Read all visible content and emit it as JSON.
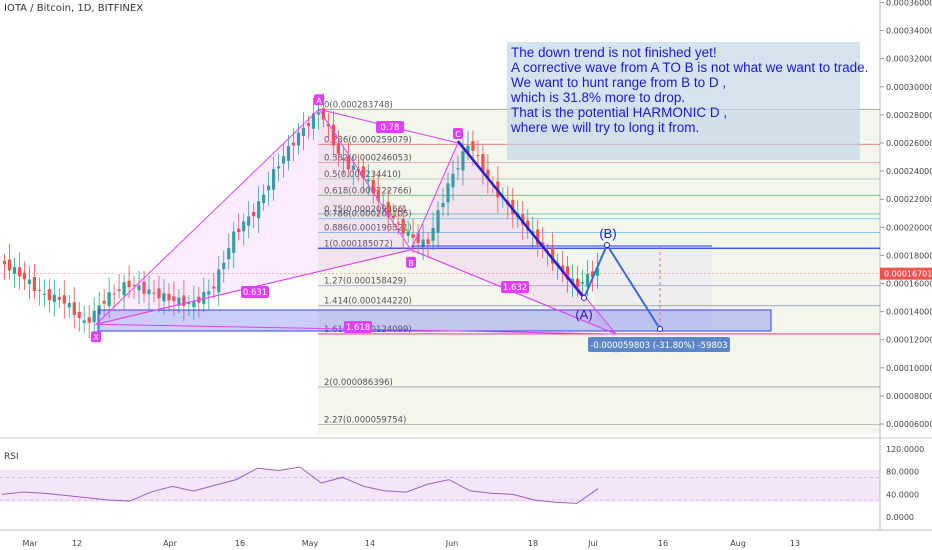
{
  "header": {
    "title": "IOTA / Bitcoin, 1D, BITFINEX"
  },
  "note": {
    "lines": [
      "The down trend is not finished yet!",
      "A corrective wave from A TO B is not what we want to trade.",
      "We want to hunt range from B to D ,",
      "which is 31.8% more to drop.",
      "That is the potential HARMONIC D ,",
      "where we will try to long it from."
    ]
  },
  "chart_data": [
    {
      "type": "line",
      "title": "IOTA / Bitcoin, 1D, BITFINEX",
      "y_axis": {
        "ticks": [
          "0.00006000",
          "0.00008000",
          "0.00010000",
          "0.00012000",
          "0.00014000",
          "0.00016000",
          "0.00018000",
          "0.00020000",
          "0.00022000",
          "0.00024000",
          "0.00026000",
          "0.00028000",
          "0.00030000",
          "0.00032000",
          "0.00034000",
          "0.00036000"
        ],
        "last_price": "0.00016701"
      },
      "x_axis": {
        "ticks": [
          "Mar",
          "12",
          "Apr",
          "16",
          "May",
          "14",
          "Jun",
          "18",
          "Jul",
          "16",
          "Aug",
          "13"
        ]
      },
      "price_path": [
        0.000176,
        0.000166,
        0.000152,
        0.000148,
        0.000131,
        0.00015,
        0.00016,
        0.000154,
        0.000149,
        0.000145,
        0.000157,
        0.000196,
        0.000212,
        0.000244,
        0.000266,
        0.000284,
        0.000247,
        0.000238,
        0.000213,
        0.000196,
        0.000187,
        0.00023,
        0.000261,
        0.00023,
        0.000212,
        0.000194,
        0.000175,
        0.000158,
        0.00017
      ],
      "fib_levels": [
        {
          "label": "0(0.000283748)",
          "value": 0.000283748
        },
        {
          "label": "0.236(0.000259079)",
          "value": 0.000259079
        },
        {
          "label": "0.382(0.000246053)",
          "value": 0.000246053
        },
        {
          "label": "0.5(0.000234410)",
          "value": 0.00023441
        },
        {
          "label": "0.618(0.000222766)",
          "value": 0.000222766
        },
        {
          "label": "0.75(0.000209466)",
          "value": 0.000209466
        },
        {
          "label": "0.786(0.000206105)",
          "value": 0.000206105
        },
        {
          "label": "0.886(0.000196321)",
          "value": 0.000196321
        },
        {
          "label": "1(0.000185072)",
          "value": 0.000185072
        },
        {
          "label": "1.27(0.000158429)",
          "value": 0.000158429
        },
        {
          "label": "1.414(0.000144220)",
          "value": 0.00014422
        },
        {
          "label": "1.618(0.000124099)",
          "value": 0.000124099
        },
        {
          "label": "2(0.000086396)",
          "value": 8.6396e-05
        },
        {
          "label": "2.27(0.000059754)",
          "value": 5.9754e-05
        }
      ],
      "pattern_points": [
        {
          "label": "X",
          "price": 0.000131
        },
        {
          "label": "A",
          "price": 0.000284
        },
        {
          "label": "B",
          "price": 0.000184
        },
        {
          "label": "C",
          "price": 0.00026
        },
        {
          "label": "D",
          "price": 0.000124
        }
      ],
      "ratios": [
        "0.78",
        "0.631",
        "1.632",
        "1.618"
      ],
      "wave_labels": [
        "(A)",
        "(B)"
      ],
      "measure_label": "-0.000059803 (-31.80%) -59803",
      "colors": {
        "up": "#26a69a",
        "down": "#ef5350",
        "pattern": "#e040fb",
        "wave": "#1a1acc",
        "zone": "#3040ee"
      }
    },
    {
      "type": "line",
      "title": "RSI",
      "y_axis": {
        "ticks": [
          "120.0000",
          "80.0000",
          "40.0000",
          "0.0000"
        ]
      },
      "values": [
        40,
        44,
        42,
        38,
        34,
        30,
        28,
        44,
        54,
        46,
        56,
        66,
        86,
        82,
        88,
        60,
        70,
        54,
        46,
        44,
        58,
        66,
        46,
        42,
        40,
        30,
        26,
        24,
        50
      ]
    }
  ]
}
